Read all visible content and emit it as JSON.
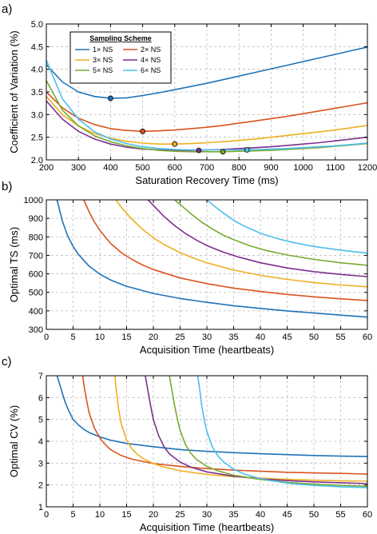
{
  "series_names": [
    "1× NS",
    "2× NS",
    "3× NS",
    "4× NS",
    "5× NS",
    "6× NS"
  ],
  "series_colors": [
    "#1f72b8",
    "#d9541e",
    "#edb020",
    "#7e2f8e",
    "#77ac30",
    "#4dbeee"
  ],
  "chart_data": [
    {
      "type": "line",
      "panel_label": "a)",
      "xlabel": "Saturation Recovery Time (ms)",
      "ylabel": "Coefficient of Variation (%)",
      "xlim": [
        200,
        1200
      ],
      "ylim": [
        2.0,
        5.0
      ],
      "xticks": [
        200,
        300,
        400,
        500,
        600,
        700,
        800,
        900,
        1000,
        1100,
        1200
      ],
      "yticks": [
        2.0,
        2.5,
        3.0,
        3.5,
        4.0,
        4.5,
        5.0
      ],
      "grid": true,
      "legend_title": "Sampling Scheme",
      "legend_position": "top-left",
      "minima": [
        {
          "x": 400,
          "y": 3.36
        },
        {
          "x": 500,
          "y": 2.63
        },
        {
          "x": 600,
          "y": 2.35
        },
        {
          "x": 675,
          "y": 2.21
        },
        {
          "x": 750,
          "y": 2.18
        },
        {
          "x": 825,
          "y": 2.22
        }
      ],
      "series": [
        {
          "name": "1× NS",
          "x": [
            200,
            250,
            300,
            350,
            400,
            450,
            500,
            550,
            600,
            650,
            700,
            750,
            800,
            850,
            900,
            950,
            1000,
            1050,
            1100,
            1150,
            1200
          ],
          "y": [
            4.1,
            3.72,
            3.5,
            3.4,
            3.36,
            3.37,
            3.42,
            3.48,
            3.55,
            3.62,
            3.69,
            3.77,
            3.85,
            3.93,
            4.01,
            4.09,
            4.17,
            4.25,
            4.33,
            4.41,
            4.49
          ]
        },
        {
          "name": "2× NS",
          "x": [
            200,
            250,
            300,
            350,
            400,
            450,
            500,
            550,
            600,
            650,
            700,
            750,
            800,
            850,
            900,
            950,
            1000,
            1050,
            1100,
            1150,
            1200
          ],
          "y": [
            3.5,
            3.15,
            2.92,
            2.78,
            2.69,
            2.65,
            2.63,
            2.64,
            2.66,
            2.69,
            2.72,
            2.76,
            2.81,
            2.86,
            2.91,
            2.96,
            3.02,
            3.08,
            3.14,
            3.2,
            3.26
          ]
        },
        {
          "name": "3× NS",
          "x": [
            200,
            250,
            300,
            350,
            400,
            450,
            500,
            550,
            600,
            650,
            700,
            750,
            800,
            850,
            900,
            950,
            1000,
            1050,
            1100,
            1150,
            1200
          ],
          "y": [
            3.4,
            3.0,
            2.75,
            2.58,
            2.48,
            2.41,
            2.37,
            2.35,
            2.35,
            2.36,
            2.38,
            2.4,
            2.43,
            2.46,
            2.5,
            2.54,
            2.58,
            2.62,
            2.66,
            2.71,
            2.76
          ]
        },
        {
          "name": "4× NS",
          "x": [
            200,
            250,
            300,
            350,
            400,
            450,
            500,
            550,
            600,
            650,
            700,
            750,
            800,
            850,
            900,
            950,
            1000,
            1050,
            1100,
            1150,
            1200
          ],
          "y": [
            3.3,
            2.9,
            2.63,
            2.46,
            2.35,
            2.28,
            2.24,
            2.22,
            2.21,
            2.21,
            2.22,
            2.23,
            2.25,
            2.27,
            2.29,
            2.32,
            2.35,
            2.38,
            2.42,
            2.46,
            2.5
          ]
        },
        {
          "name": "5× NS",
          "x": [
            200,
            250,
            300,
            350,
            400,
            450,
            500,
            550,
            600,
            650,
            700,
            750,
            800,
            850,
            900,
            950,
            1000,
            1050,
            1100,
            1150,
            1200
          ],
          "y": [
            3.75,
            3.1,
            2.75,
            2.53,
            2.4,
            2.31,
            2.25,
            2.21,
            2.19,
            2.18,
            2.18,
            2.18,
            2.19,
            2.2,
            2.21,
            2.23,
            2.25,
            2.27,
            2.3,
            2.33,
            2.36
          ]
        },
        {
          "name": "6× NS",
          "x": [
            200,
            250,
            300,
            350,
            400,
            450,
            500,
            550,
            600,
            650,
            700,
            750,
            800,
            850,
            900,
            950,
            1000,
            1050,
            1100,
            1150,
            1200
          ],
          "y": [
            4.2,
            3.35,
            2.9,
            2.62,
            2.46,
            2.36,
            2.29,
            2.25,
            2.23,
            2.22,
            2.22,
            2.22,
            2.22,
            2.23,
            2.24,
            2.25,
            2.27,
            2.29,
            2.31,
            2.34,
            2.37
          ]
        }
      ]
    },
    {
      "type": "line",
      "panel_label": "b)",
      "xlabel": "Acquisition Time (heartbeats)",
      "ylabel": "Optimal TS (ms)",
      "xlim": [
        0,
        60
      ],
      "ylim": [
        300,
        1000
      ],
      "xticks": [
        0,
        5,
        10,
        15,
        20,
        25,
        30,
        35,
        40,
        45,
        50,
        55,
        60
      ],
      "yticks": [
        300,
        400,
        500,
        600,
        700,
        800,
        900,
        1000
      ],
      "grid": true,
      "series": [
        {
          "name": "1× NS",
          "x": [
            2,
            3,
            4,
            5,
            6,
            8,
            10,
            12,
            15,
            20,
            25,
            30,
            35,
            40,
            45,
            50,
            55,
            60
          ],
          "y": [
            1000,
            885,
            805,
            748,
            705,
            642,
            598,
            567,
            533,
            494,
            467,
            446,
            428,
            413,
            400,
            388,
            377,
            366
          ]
        },
        {
          "name": "2× NS",
          "x": [
            7,
            8,
            9,
            10,
            12,
            14,
            16,
            18,
            20,
            25,
            30,
            35,
            40,
            45,
            50,
            55,
            60
          ],
          "y": [
            1000,
            935,
            880,
            835,
            765,
            715,
            678,
            648,
            623,
            578,
            547,
            523,
            505,
            489,
            476,
            465,
            456
          ]
        },
        {
          "name": "3× NS",
          "x": [
            13,
            14,
            16,
            18,
            20,
            22,
            25,
            28,
            30,
            35,
            40,
            45,
            50,
            55,
            60
          ],
          "y": [
            1000,
            960,
            895,
            840,
            795,
            758,
            715,
            680,
            660,
            620,
            592,
            570,
            553,
            540,
            530
          ]
        },
        {
          "name": "4× NS",
          "x": [
            19,
            20,
            22,
            24,
            26,
            28,
            30,
            33,
            36,
            40,
            45,
            50,
            55,
            60
          ],
          "y": [
            1000,
            970,
            910,
            860,
            818,
            783,
            753,
            718,
            690,
            660,
            632,
            612,
            597,
            585
          ]
        },
        {
          "name": "5× NS",
          "x": [
            24,
            25,
            27,
            29,
            31,
            33,
            35,
            38,
            41,
            45,
            50,
            55,
            60
          ],
          "y": [
            1000,
            975,
            925,
            880,
            843,
            810,
            785,
            752,
            727,
            702,
            678,
            660,
            646
          ]
        },
        {
          "name": "6× NS",
          "x": [
            30,
            31,
            33,
            35,
            37,
            40,
            43,
            46,
            50,
            55,
            60
          ],
          "y": [
            1000,
            975,
            930,
            890,
            858,
            820,
            792,
            770,
            748,
            728,
            712
          ]
        }
      ]
    },
    {
      "type": "line",
      "panel_label": "c)",
      "xlabel": "Acquisition Time (heartbeats)",
      "ylabel": "Optimal CV (%)",
      "xlim": [
        0,
        60
      ],
      "ylim": [
        1,
        7
      ],
      "xticks": [
        0,
        5,
        10,
        15,
        20,
        25,
        30,
        35,
        40,
        45,
        50,
        55,
        60
      ],
      "yticks": [
        1,
        2,
        3,
        4,
        5,
        6,
        7
      ],
      "grid": true,
      "series": [
        {
          "name": "1× NS",
          "x": [
            2,
            2.5,
            3,
            3.5,
            4,
            5,
            6,
            7,
            8,
            10,
            12,
            15,
            20,
            25,
            30,
            35,
            40,
            45,
            50,
            55,
            60
          ],
          "y": [
            7.0,
            6.6,
            6.2,
            5.8,
            5.5,
            5.0,
            4.75,
            4.55,
            4.4,
            4.2,
            4.05,
            3.9,
            3.75,
            3.62,
            3.54,
            3.48,
            3.43,
            3.39,
            3.35,
            3.32,
            3.3
          ]
        },
        {
          "name": "2× NS",
          "x": [
            6.8,
            7,
            7.5,
            8,
            9,
            10,
            11,
            12,
            14,
            16,
            20,
            25,
            30,
            35,
            40,
            45,
            50,
            55,
            60
          ],
          "y": [
            7.0,
            6.6,
            5.9,
            5.3,
            4.6,
            4.15,
            3.85,
            3.62,
            3.35,
            3.18,
            2.98,
            2.85,
            2.75,
            2.68,
            2.63,
            2.58,
            2.55,
            2.53,
            2.5
          ]
        },
        {
          "name": "3× NS",
          "x": [
            12.8,
            13,
            13.5,
            14,
            15,
            16,
            17,
            18,
            20,
            22,
            25,
            30,
            35,
            40,
            45,
            50,
            55,
            60
          ],
          "y": [
            7.0,
            6.5,
            5.5,
            4.8,
            4.05,
            3.65,
            3.4,
            3.22,
            2.98,
            2.82,
            2.65,
            2.48,
            2.38,
            2.31,
            2.26,
            2.22,
            2.19,
            2.17
          ]
        },
        {
          "name": "4× NS",
          "x": [
            18.5,
            19,
            19.5,
            20,
            21,
            22,
            23,
            25,
            27,
            30,
            35,
            40,
            45,
            50,
            55,
            60
          ],
          "y": [
            7.0,
            6.3,
            5.6,
            5.0,
            4.25,
            3.75,
            3.42,
            3.05,
            2.82,
            2.6,
            2.4,
            2.28,
            2.2,
            2.14,
            2.1,
            2.06
          ]
        },
        {
          "name": "5× NS",
          "x": [
            23,
            23.5,
            24,
            24.5,
            25,
            26,
            27,
            28,
            30,
            32,
            35,
            40,
            45,
            50,
            55,
            60
          ],
          "y": [
            7.0,
            6.3,
            5.6,
            5.0,
            4.5,
            3.85,
            3.45,
            3.18,
            2.85,
            2.65,
            2.45,
            2.25,
            2.12,
            2.04,
            1.98,
            1.94
          ]
        },
        {
          "name": "6× NS",
          "x": [
            28.3,
            28.7,
            29,
            29.5,
            30,
            31,
            32,
            33,
            35,
            37,
            40,
            45,
            50,
            55,
            60
          ],
          "y": [
            7.0,
            6.3,
            5.7,
            5.0,
            4.45,
            3.75,
            3.35,
            3.08,
            2.72,
            2.5,
            2.28,
            2.08,
            1.98,
            1.92,
            1.88
          ]
        }
      ]
    }
  ]
}
